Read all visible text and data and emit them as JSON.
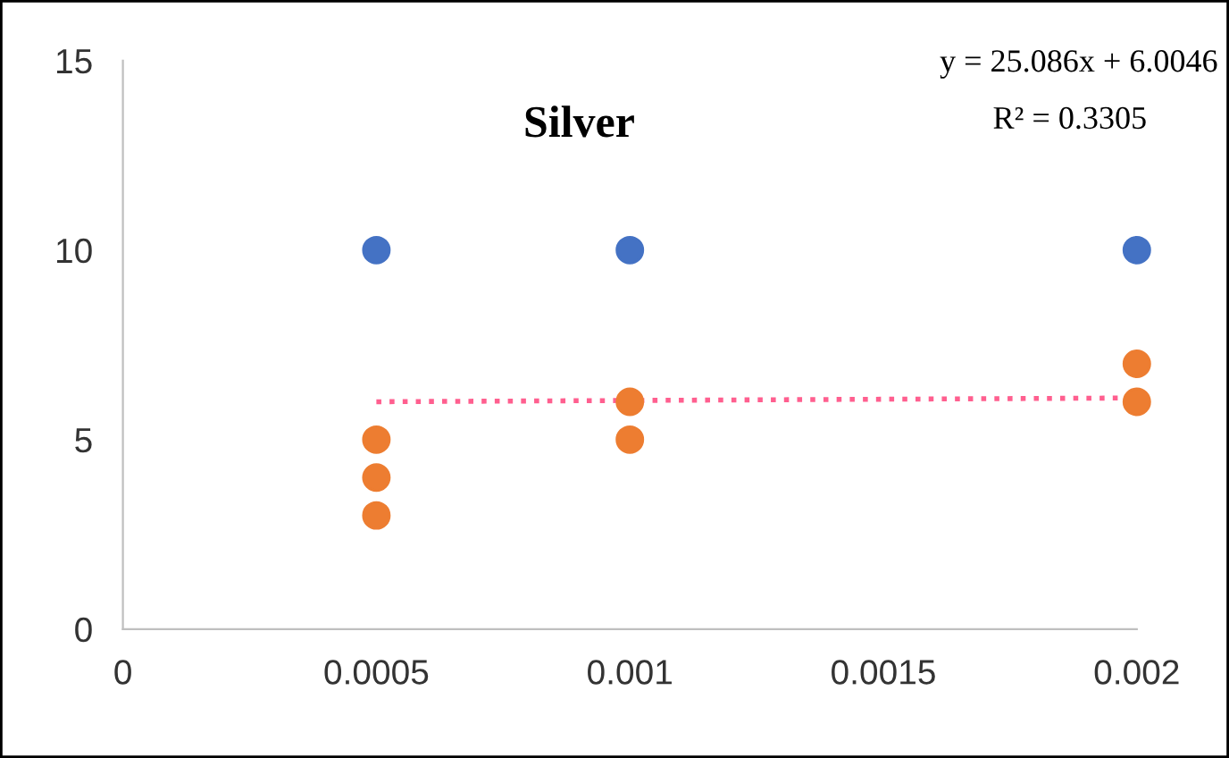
{
  "chart_data": {
    "type": "scatter",
    "title": "Silver",
    "series": [
      {
        "color": "#4472c4",
        "x": [
          0.0005,
          0.001,
          0.002
        ],
        "values": [
          10,
          10,
          10
        ]
      },
      {
        "color": "#ed7d31",
        "x": [
          0.0005,
          0.0005,
          0.0005,
          0.001,
          0.001,
          0.002,
          0.002
        ],
        "values": [
          5,
          4,
          3,
          6,
          5,
          7,
          6
        ]
      },
      {
        "type": "line",
        "color": "#ff5f8f",
        "line_style": "dotted",
        "marker": "none",
        "x": [
          0.0005,
          0.002
        ],
        "values": [
          6.0,
          6.1
        ]
      }
    ],
    "annotations": [
      "y = 25.086x + 6.0046",
      "R² = 0.3305"
    ],
    "marker": "circle",
    "xlim": [
      0,
      0.002
    ],
    "xticks": [
      0,
      0.0005,
      0.001,
      0.0015,
      0.002
    ],
    "ylim": [
      0,
      15
    ],
    "yticks": [
      0,
      5,
      10,
      15
    ],
    "grid": false,
    "legend": false
  }
}
